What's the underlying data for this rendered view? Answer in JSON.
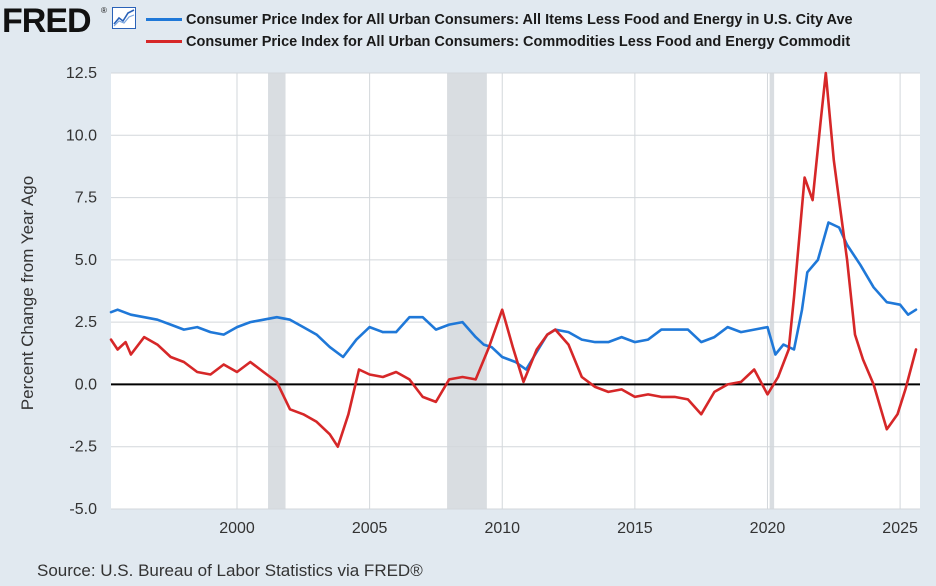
{
  "header": {
    "logo_text": "FRED",
    "logo_reg": "®"
  },
  "colors": {
    "blue_series": "#1f78d8",
    "red_series": "#d62728",
    "recession": "#d9dde1",
    "grid": "#d3d7db",
    "zero_line": "#000000"
  },
  "chart_data": {
    "type": "line",
    "title": "",
    "xlabel": "",
    "ylabel": "Percent Change from Year Ago",
    "xlim": [
      1995.25,
      2025.75
    ],
    "ylim": [
      -5.0,
      12.5
    ],
    "yticks": [
      {
        "value": 12.5,
        "label": "12.5"
      },
      {
        "value": 10.0,
        "label": "10.0"
      },
      {
        "value": 7.5,
        "label": "7.5"
      },
      {
        "value": 5.0,
        "label": "5.0"
      },
      {
        "value": 2.5,
        "label": "2.5"
      },
      {
        "value": 0.0,
        "label": "0.0"
      },
      {
        "value": -2.5,
        "label": "-2.5"
      },
      {
        "value": -5.0,
        "label": "-5.0"
      }
    ],
    "xticks": [
      {
        "value": 2000,
        "label": "2000"
      },
      {
        "value": 2005,
        "label": "2005"
      },
      {
        "value": 2010,
        "label": "2010"
      },
      {
        "value": 2015,
        "label": "2015"
      },
      {
        "value": 2020,
        "label": "2020"
      },
      {
        "value": 2025,
        "label": "2025"
      }
    ],
    "grid": true,
    "recessions": [
      [
        2001.17,
        2001.83
      ],
      [
        2007.92,
        2009.42
      ],
      [
        2020.08,
        2020.25
      ]
    ],
    "series": [
      {
        "name": "Consumer Price Index for All Urban Consumers: All Items Less Food and Energy in U.S. City Average",
        "color": "#1f78d8",
        "points": [
          [
            1995.25,
            2.9
          ],
          [
            1995.5,
            3.0
          ],
          [
            1996.0,
            2.8
          ],
          [
            1996.5,
            2.7
          ],
          [
            1997.0,
            2.6
          ],
          [
            1997.5,
            2.4
          ],
          [
            1998.0,
            2.2
          ],
          [
            1998.5,
            2.3
          ],
          [
            1999.0,
            2.1
          ],
          [
            1999.5,
            2.0
          ],
          [
            2000.0,
            2.3
          ],
          [
            2000.5,
            2.5
          ],
          [
            2001.0,
            2.6
          ],
          [
            2001.5,
            2.7
          ],
          [
            2002.0,
            2.6
          ],
          [
            2002.5,
            2.3
          ],
          [
            2003.0,
            2.0
          ],
          [
            2003.5,
            1.5
          ],
          [
            2004.0,
            1.1
          ],
          [
            2004.5,
            1.8
          ],
          [
            2005.0,
            2.3
          ],
          [
            2005.5,
            2.1
          ],
          [
            2006.0,
            2.1
          ],
          [
            2006.5,
            2.7
          ],
          [
            2007.0,
            2.7
          ],
          [
            2007.5,
            2.2
          ],
          [
            2008.0,
            2.4
          ],
          [
            2008.5,
            2.5
          ],
          [
            2009.0,
            1.9
          ],
          [
            2009.3,
            1.6
          ],
          [
            2009.6,
            1.5
          ],
          [
            2010.0,
            1.1
          ],
          [
            2010.5,
            0.9
          ],
          [
            2010.9,
            0.6
          ],
          [
            2011.3,
            1.3
          ],
          [
            2011.7,
            2.0
          ],
          [
            2012.0,
            2.2
          ],
          [
            2012.5,
            2.1
          ],
          [
            2013.0,
            1.8
          ],
          [
            2013.5,
            1.7
          ],
          [
            2014.0,
            1.7
          ],
          [
            2014.5,
            1.9
          ],
          [
            2015.0,
            1.7
          ],
          [
            2015.5,
            1.8
          ],
          [
            2016.0,
            2.2
          ],
          [
            2016.5,
            2.2
          ],
          [
            2017.0,
            2.2
          ],
          [
            2017.5,
            1.7
          ],
          [
            2018.0,
            1.9
          ],
          [
            2018.5,
            2.3
          ],
          [
            2019.0,
            2.1
          ],
          [
            2019.5,
            2.2
          ],
          [
            2020.0,
            2.3
          ],
          [
            2020.3,
            1.2
          ],
          [
            2020.6,
            1.6
          ],
          [
            2021.0,
            1.4
          ],
          [
            2021.3,
            3.0
          ],
          [
            2021.5,
            4.5
          ],
          [
            2021.9,
            5.0
          ],
          [
            2022.3,
            6.5
          ],
          [
            2022.7,
            6.3
          ],
          [
            2023.0,
            5.6
          ],
          [
            2023.5,
            4.8
          ],
          [
            2024.0,
            3.9
          ],
          [
            2024.5,
            3.3
          ],
          [
            2025.0,
            3.2
          ],
          [
            2025.3,
            2.8
          ],
          [
            2025.6,
            3.0
          ]
        ]
      },
      {
        "name": "Consumer Price Index for All Urban Consumers: Commodities Less Food and Energy Commodities in U.S. City Average",
        "color": "#d62728",
        "points": [
          [
            1995.25,
            1.8
          ],
          [
            1995.5,
            1.4
          ],
          [
            1995.8,
            1.7
          ],
          [
            1996.0,
            1.2
          ],
          [
            1996.5,
            1.9
          ],
          [
            1997.0,
            1.6
          ],
          [
            1997.5,
            1.1
          ],
          [
            1998.0,
            0.9
          ],
          [
            1998.5,
            0.5
          ],
          [
            1999.0,
            0.4
          ],
          [
            1999.5,
            0.8
          ],
          [
            2000.0,
            0.5
          ],
          [
            2000.5,
            0.9
          ],
          [
            2001.0,
            0.5
          ],
          [
            2001.5,
            0.1
          ],
          [
            2002.0,
            -1.0
          ],
          [
            2002.5,
            -1.2
          ],
          [
            2003.0,
            -1.5
          ],
          [
            2003.5,
            -2.0
          ],
          [
            2003.8,
            -2.5
          ],
          [
            2004.2,
            -1.2
          ],
          [
            2004.6,
            0.6
          ],
          [
            2005.0,
            0.4
          ],
          [
            2005.5,
            0.3
          ],
          [
            2006.0,
            0.5
          ],
          [
            2006.5,
            0.2
          ],
          [
            2007.0,
            -0.5
          ],
          [
            2007.5,
            -0.7
          ],
          [
            2008.0,
            0.2
          ],
          [
            2008.5,
            0.3
          ],
          [
            2009.0,
            0.2
          ],
          [
            2009.5,
            1.5
          ],
          [
            2010.0,
            3.0
          ],
          [
            2010.4,
            1.5
          ],
          [
            2010.8,
            0.1
          ],
          [
            2011.3,
            1.4
          ],
          [
            2011.7,
            2.0
          ],
          [
            2012.0,
            2.2
          ],
          [
            2012.5,
            1.6
          ],
          [
            2013.0,
            0.3
          ],
          [
            2013.5,
            -0.1
          ],
          [
            2014.0,
            -0.3
          ],
          [
            2014.5,
            -0.2
          ],
          [
            2015.0,
            -0.5
          ],
          [
            2015.5,
            -0.4
          ],
          [
            2016.0,
            -0.5
          ],
          [
            2016.5,
            -0.5
          ],
          [
            2017.0,
            -0.6
          ],
          [
            2017.5,
            -1.2
          ],
          [
            2018.0,
            -0.3
          ],
          [
            2018.5,
            0.0
          ],
          [
            2019.0,
            0.1
          ],
          [
            2019.5,
            0.6
          ],
          [
            2020.0,
            -0.4
          ],
          [
            2020.4,
            0.3
          ],
          [
            2020.8,
            1.4
          ],
          [
            2021.0,
            3.5
          ],
          [
            2021.4,
            8.3
          ],
          [
            2021.7,
            7.4
          ],
          [
            2022.0,
            10.5
          ],
          [
            2022.2,
            12.5
          ],
          [
            2022.5,
            9.0
          ],
          [
            2022.75,
            7.0
          ],
          [
            2023.0,
            5.0
          ],
          [
            2023.3,
            2.0
          ],
          [
            2023.6,
            1.0
          ],
          [
            2024.0,
            0.0
          ],
          [
            2024.5,
            -1.8
          ],
          [
            2024.9,
            -1.2
          ],
          [
            2025.2,
            -0.2
          ],
          [
            2025.6,
            1.4
          ]
        ]
      }
    ]
  },
  "legend": {
    "series_1_label": "Consumer Price Index for All Urban Consumers: All Items Less Food and Energy in U.S. City Ave",
    "series_2_label": "Consumer Price Index for All Urban Consumers: Commodities Less Food and Energy Commodit"
  },
  "source": "Source: U.S. Bureau of Labor Statistics via FRED®"
}
